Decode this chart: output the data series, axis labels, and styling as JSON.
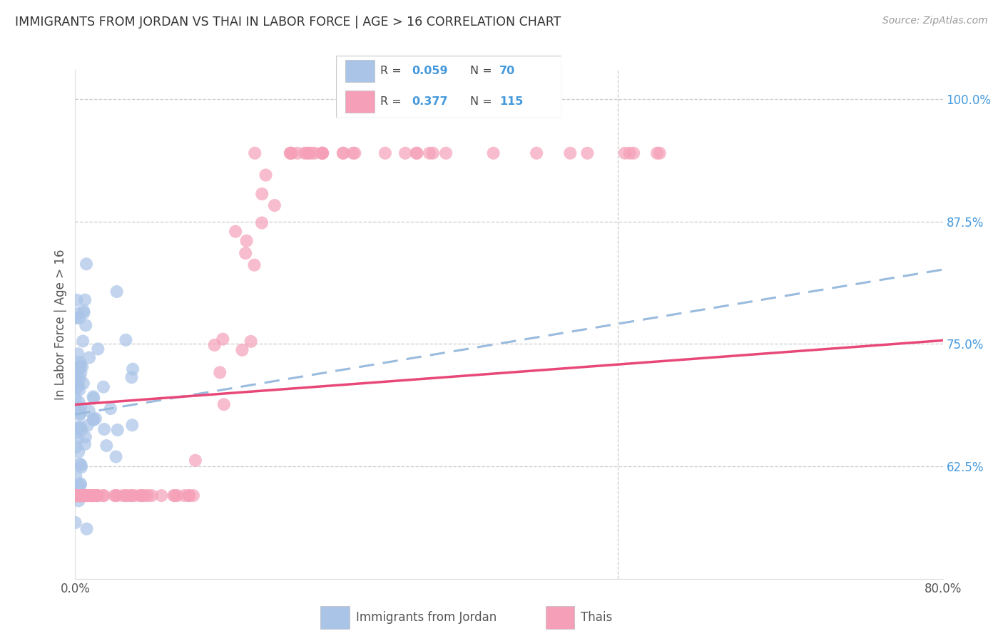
{
  "title": "IMMIGRANTS FROM JORDAN VS THAI IN LABOR FORCE | AGE > 16 CORRELATION CHART",
  "source": "Source: ZipAtlas.com",
  "ylabel": "In Labor Force | Age > 16",
  "x_min": 0.0,
  "x_max": 0.8,
  "y_min": 0.51,
  "y_max": 1.03,
  "y_ticks_right": [
    0.625,
    0.75,
    0.875,
    1.0
  ],
  "y_tick_labels_right": [
    "62.5%",
    "75.0%",
    "87.5%",
    "100.0%"
  ],
  "jordan_R": 0.059,
  "jordan_N": 70,
  "thai_R": 0.377,
  "thai_N": 115,
  "jordan_color": "#aac4e8",
  "jordan_edge_color": "#aac4e8",
  "thai_color": "#f5a0b8",
  "thai_edge_color": "#f5a0b8",
  "jordan_line_color": "#99bbdd",
  "thai_line_color": "#e84878",
  "legend_label_jordan": "Immigrants from Jordan",
  "legend_label_thai": "Thais",
  "background_color": "#ffffff",
  "grid_color": "#cccccc",
  "title_color": "#333333",
  "right_axis_color": "#4499dd",
  "axis_label_color": "#555555",
  "jordan_line_intercept": 0.678,
  "jordan_line_slope": 0.185,
  "thai_line_intercept": 0.688,
  "thai_line_slope": 0.082
}
